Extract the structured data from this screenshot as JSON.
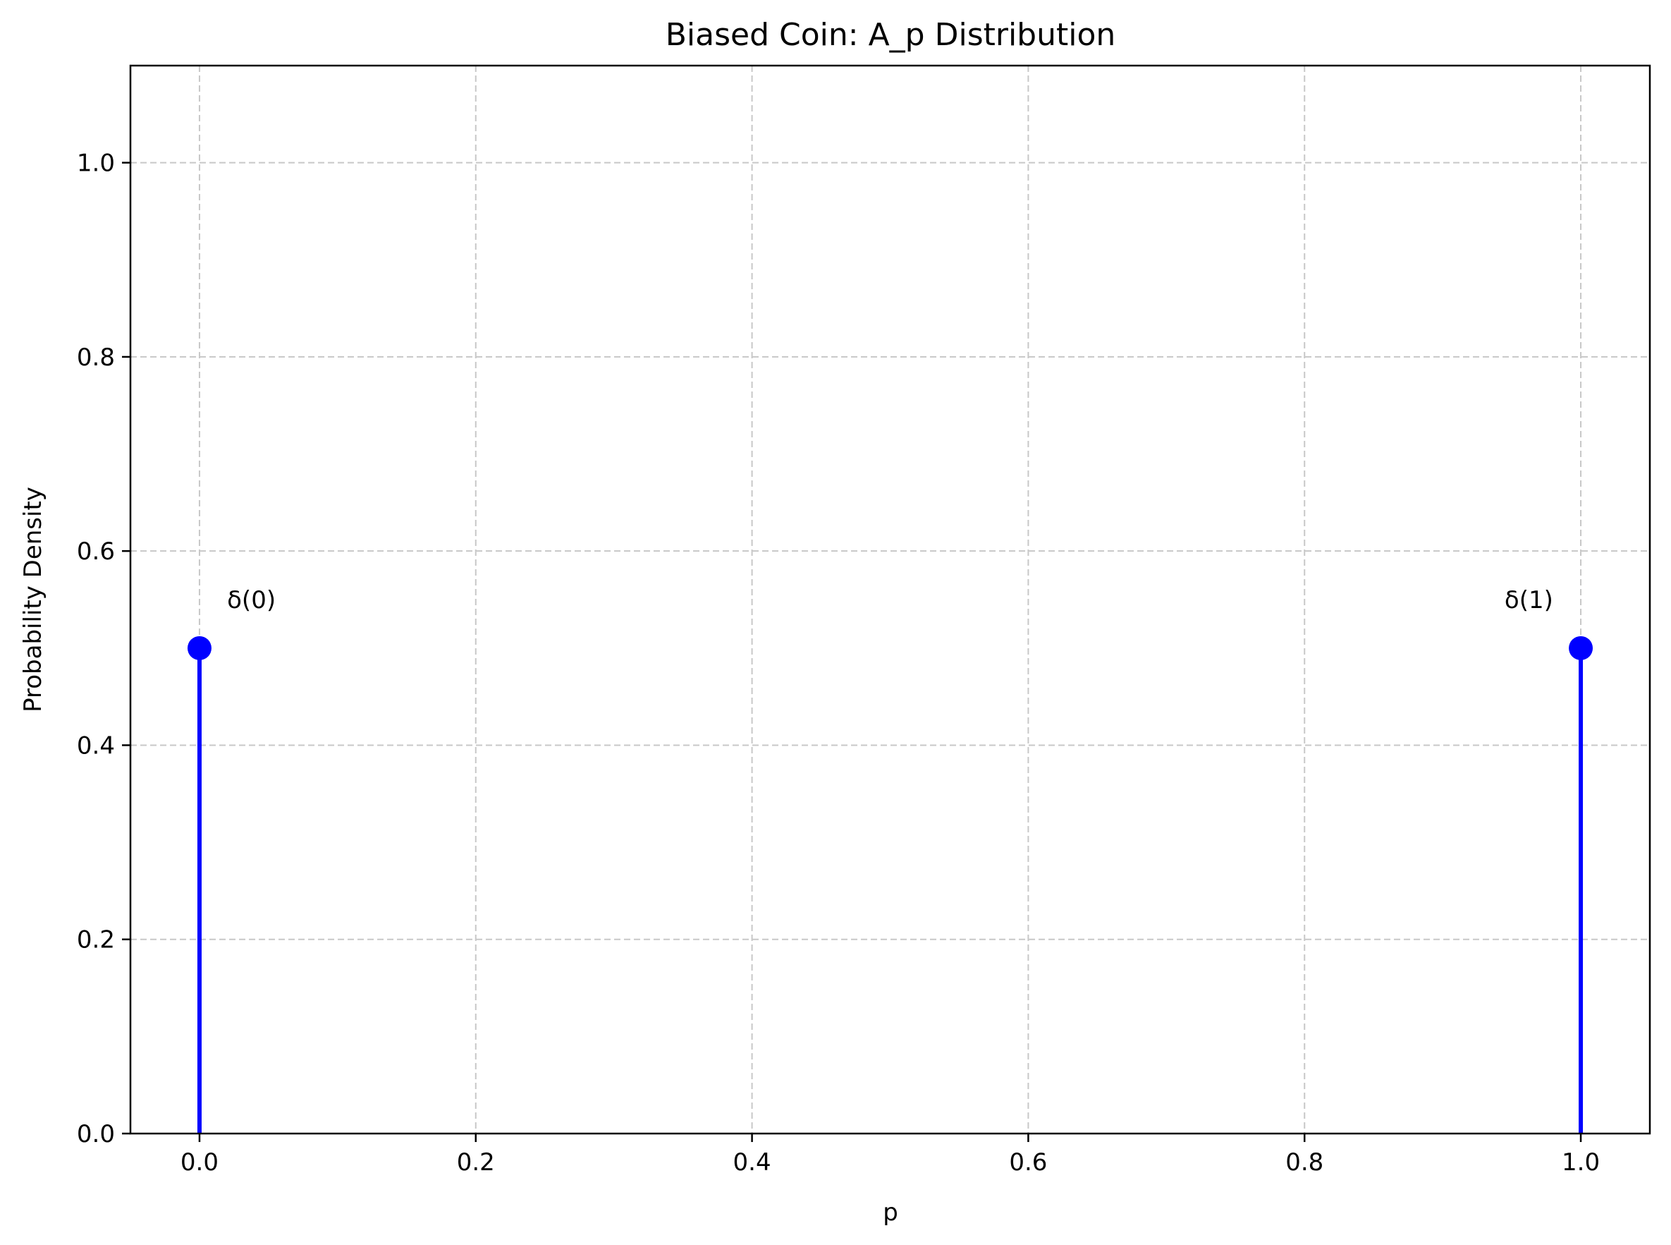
{
  "chart_data": {
    "type": "scatter",
    "subtype": "stem",
    "title": "Biased Coin: A_p Distribution",
    "xlabel": "p",
    "ylabel": "Probability Density",
    "xlim": [
      -0.05,
      1.05
    ],
    "ylim": [
      0,
      1.1
    ],
    "xticks": [
      0.0,
      0.2,
      0.4,
      0.6,
      0.8,
      1.0
    ],
    "xtick_labels": [
      "0.0",
      "0.2",
      "0.4",
      "0.6",
      "0.8",
      "1.0"
    ],
    "yticks": [
      0.0,
      0.2,
      0.4,
      0.6,
      0.8,
      1.0
    ],
    "ytick_labels": [
      "0.0",
      "0.2",
      "0.4",
      "0.6",
      "0.8",
      "1.0"
    ],
    "grid": true,
    "series": [
      {
        "color": "#0000ff",
        "points": [
          {
            "x": 0.0,
            "y": 0.5
          },
          {
            "x": 1.0,
            "y": 0.5
          }
        ]
      }
    ],
    "annotations": [
      {
        "text": "δ(0)",
        "x": 0.02,
        "y": 0.55
      },
      {
        "text": "δ(1)",
        "x": 0.98,
        "y": 0.55,
        "align": "right"
      }
    ]
  }
}
